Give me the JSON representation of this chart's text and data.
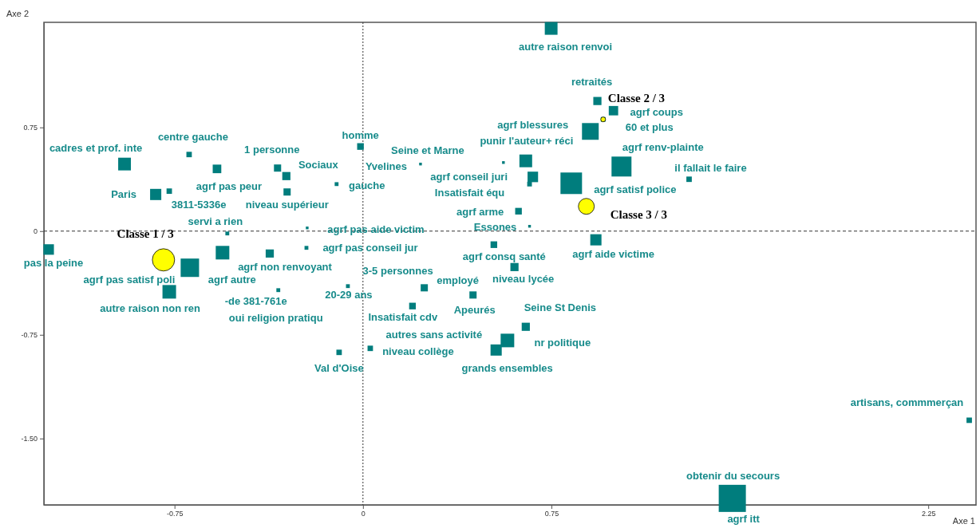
{
  "chart_data": {
    "type": "bubble",
    "xlabel": "Axe 1",
    "ylabel": "Axe 2",
    "xlim": [
      -1.27,
      2.44
    ],
    "ylim": [
      -1.98,
      1.51
    ],
    "xticks": [
      -0.75,
      0,
      0.75,
      2.25
    ],
    "yticks": [
      0.75,
      0,
      -0.75,
      {
        "value": -1.5,
        "label": "-1.50"
      }
    ],
    "ref_lines": [
      {
        "axis": "x",
        "value": 0,
        "line_style": "dotted"
      },
      {
        "axis": "y",
        "value": 0,
        "line_style": "dashed"
      }
    ],
    "series": [
      {
        "marker": "square",
        "color": "#007d7d",
        "x": [
          -0.949,
          -0.692,
          -0.581,
          -0.34,
          -0.305,
          -0.01,
          -0.105,
          -0.302,
          -0.825,
          -0.771,
          -0.54,
          -0.222,
          -0.225,
          -1.251,
          -0.689,
          -0.559,
          -0.371,
          -0.771,
          -0.337,
          -0.06,
          0.244,
          0.197,
          0.438,
          0.521,
          0.603,
          0.648,
          0.575,
          0.53,
          0.029,
          -0.095,
          0.749,
          0.933,
          0.997,
          0.956,
          0.905,
          0.229,
          0.559,
          0.648,
          0.676,
          0.663,
          0.829,
          1.029,
          1.298,
          0.619,
          0.663,
          0.927,
          2.413,
          1.47
        ],
        "values": [
          0.485,
          0.554,
          0.45,
          0.456,
          0.398,
          0.612,
          0.34,
          0.283,
          0.265,
          0.289,
          -0.017,
          0.023,
          -0.121,
          -0.133,
          -0.265,
          -0.156,
          -0.162,
          -0.439,
          -0.427,
          -0.398,
          -0.41,
          -0.542,
          -0.462,
          -0.098,
          -0.26,
          -0.692,
          -0.791,
          -0.86,
          -0.848,
          -0.877,
          1.466,
          0.941,
          0.871,
          0.808,
          0.721,
          0.485,
          0.496,
          0.508,
          0.392,
          0.34,
          0.346,
          0.467,
          0.375,
          0.144,
          0.035,
          -0.063,
          -1.368,
          -1.933
        ],
        "sizes": [
          0.22,
          0.04,
          0.1,
          0.07,
          0.09,
          0.06,
          0.02,
          0.07,
          0.17,
          0.04,
          0.02,
          0.01,
          0.02,
          0.15,
          0.46,
          0.25,
          0.09,
          0.25,
          0.02,
          0.02,
          0.07,
          0.06,
          0.07,
          0.06,
          0.09,
          0.09,
          0.25,
          0.17,
          0.04,
          0.04,
          0.22,
          0.09,
          0.12,
          0.03,
          0.38,
          0.01,
          0.01,
          0.22,
          0.15,
          0.03,
          0.63,
          0.54,
          0.04,
          0.06,
          0.01,
          0.17,
          0.04,
          1
        ]
      },
      {
        "marker": "circle",
        "color": "#ffff00",
        "x": [
          -0.794,
          0.956,
          0.889
        ],
        "values": [
          -0.208,
          0.808,
          0.179
        ],
        "sizes": [
          0.53,
          0.025,
          0.27
        ],
        "value_labels": [
          "Classe 1 / 3",
          "Classe 2 / 3",
          "Classe 3 / 3"
        ]
      }
    ],
    "annotations": [
      {
        "text": "cadres et prof. inte",
        "x": -0.949,
        "y": 0.485
      },
      {
        "text": "centre gauche",
        "x": -0.692,
        "y": 0.554
      },
      {
        "text": "1 personne",
        "x": -0.34,
        "y": 0.456
      },
      {
        "text": "homme",
        "x": -0.01,
        "y": 0.612
      },
      {
        "text": "Sociaux",
        "x": -0.305,
        "y": 0.398
      },
      {
        "text": "agrf pas peur",
        "x": -0.581,
        "y": 0.45
      },
      {
        "text": "Paris",
        "x": -0.825,
        "y": 0.265
      },
      {
        "text": "3811-5336e",
        "x": -0.771,
        "y": 0.289
      },
      {
        "text": "niveau supérieur",
        "x": -0.302,
        "y": 0.283
      },
      {
        "text": "gauche",
        "x": -0.105,
        "y": 0.34
      },
      {
        "text": "servi a rien",
        "x": -0.54,
        "y": -0.017
      },
      {
        "text": "agrf pas aide victim",
        "x": -0.222,
        "y": 0.023
      },
      {
        "text": "agrf pas conseil jur",
        "x": -0.225,
        "y": -0.121
      },
      {
        "text": "pas la peine",
        "x": -1.251,
        "y": -0.133
      },
      {
        "text": "agrf pas satisf poli",
        "x": -0.689,
        "y": -0.265
      },
      {
        "text": "agrf autre",
        "x": -0.559,
        "y": -0.156
      },
      {
        "text": "agrf non renvoyant",
        "x": -0.371,
        "y": -0.162
      },
      {
        "text": "autre raison non ren",
        "x": -0.771,
        "y": -0.439
      },
      {
        "text": "-de 381-761e",
        "x": -0.337,
        "y": -0.427
      },
      {
        "text": "oui religion pratiqu",
        "x": -0.337,
        "y": -0.427
      },
      {
        "text": "20-29 ans",
        "x": -0.06,
        "y": -0.398
      },
      {
        "text": "3-5 personnes",
        "x": 0.244,
        "y": -0.41
      },
      {
        "text": "employé",
        "x": 0.244,
        "y": -0.41
      },
      {
        "text": "Insatisfait cdv",
        "x": 0.197,
        "y": -0.542
      },
      {
        "text": "Apeurés",
        "x": 0.438,
        "y": -0.462
      },
      {
        "text": "agrf consq santé",
        "x": 0.521,
        "y": -0.098
      },
      {
        "text": "niveau lycée",
        "x": 0.603,
        "y": -0.26
      },
      {
        "text": "Seine St Denis",
        "x": 0.648,
        "y": -0.692
      },
      {
        "text": "nr politique",
        "x": 0.648,
        "y": -0.692
      },
      {
        "text": "autres sans activité",
        "x": 0.575,
        "y": -0.791
      },
      {
        "text": "niveau collège",
        "x": 0.029,
        "y": -0.848
      },
      {
        "text": "grands ensembles",
        "x": 0.53,
        "y": -0.86
      },
      {
        "text": "Val d'Oise",
        "x": -0.095,
        "y": -0.877
      },
      {
        "text": "autre raison renvoi",
        "x": 0.749,
        "y": 1.466
      },
      {
        "text": "retraités",
        "x": 0.933,
        "y": 0.941
      },
      {
        "text": "agrf coups",
        "x": 0.997,
        "y": 0.871
      },
      {
        "text": "60 et plus",
        "x": 0.956,
        "y": 0.808
      },
      {
        "text": "agrf blessures",
        "x": 0.905,
        "y": 0.721
      },
      {
        "text": "punir l'auteur+ réci",
        "x": 0.648,
        "y": 0.508
      },
      {
        "text": "Seine et Marne",
        "x": 0.229,
        "y": 0.485
      },
      {
        "text": "Yvelines",
        "x": 0.229,
        "y": 0.485
      },
      {
        "text": "agrf conseil juri",
        "x": 0.676,
        "y": 0.392
      },
      {
        "text": "Insatisfait équ",
        "x": 0.663,
        "y": 0.34
      },
      {
        "text": "agrf renv-plainte",
        "x": 1.029,
        "y": 0.467
      },
      {
        "text": "il fallait le faire",
        "x": 1.298,
        "y": 0.375
      },
      {
        "text": "agrf satisf police",
        "x": 0.829,
        "y": 0.346
      },
      {
        "text": "agrf arme",
        "x": 0.619,
        "y": 0.144
      },
      {
        "text": "Essones",
        "x": 0.663,
        "y": 0.035
      },
      {
        "text": "agrf aide victime",
        "x": 0.927,
        "y": -0.063
      },
      {
        "text": "artisans, commmerçan",
        "x": 2.413,
        "y": -1.368
      },
      {
        "text": "obtenir du secours",
        "x": 1.47,
        "y": -1.933
      },
      {
        "text": "agrf itt",
        "x": 1.47,
        "y": -1.933
      }
    ]
  }
}
